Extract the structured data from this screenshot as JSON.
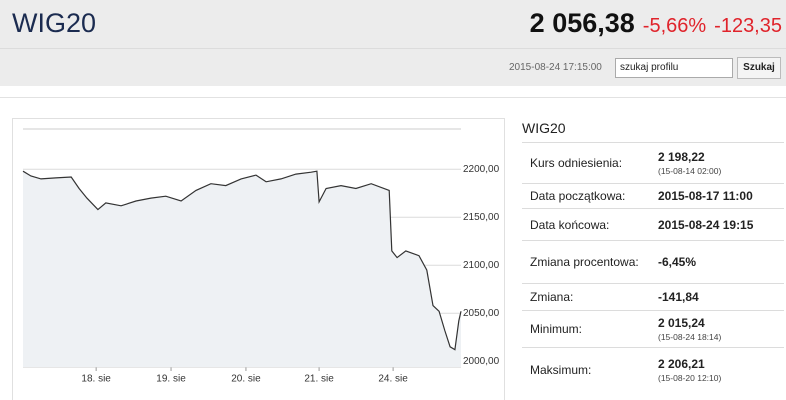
{
  "header": {
    "title": "WIG20",
    "price": "2 056,38",
    "change_percent": "-5,66%",
    "change": "-123,35",
    "timestamp": "2015-08-24 17:15:00",
    "search_placeholder": "szukaj profilu",
    "search_button": "Szukaj"
  },
  "chart_data": {
    "type": "line",
    "x": [
      0,
      1.8,
      4.1,
      7.5,
      11.0,
      12.8,
      14.6,
      17.1,
      18.9,
      22.4,
      25.8,
      29.2,
      32.6,
      36.1,
      39.5,
      42.9,
      46.3,
      49.8,
      53.2,
      55.5,
      58.9,
      62.3,
      65.8,
      67.1,
      67.6,
      69.2,
      72.6,
      76.0,
      79.5,
      83.6,
      84.2,
      85.4,
      87.4,
      90.4,
      92.2,
      93.6,
      95.0,
      96.3,
      97.5,
      98.6,
      99.5,
      100
    ],
    "series": [
      {
        "color": "#333333",
        "values": [
          2198,
          2193,
          2190,
          2191,
          2192,
          2180,
          2170,
          2158,
          2165,
          2162,
          2167,
          2170,
          2172,
          2167,
          2178,
          2185,
          2183,
          2190,
          2194,
          2187,
          2190,
          2195,
          2197,
          2198,
          2166,
          2180,
          2183,
          2180,
          2185,
          2178,
          2115,
          2108,
          2115,
          2110,
          2095,
          2058,
          2052,
          2032,
          2015,
          2012,
          2042,
          2052
        ]
      }
    ],
    "xlim": [
      0,
      100
    ],
    "xticks": [
      {
        "value": 16.7,
        "label": "18. sie"
      },
      {
        "value": 33.8,
        "label": "19. sie"
      },
      {
        "value": 50.9,
        "label": "20. sie"
      },
      {
        "value": 67.6,
        "label": "21. sie"
      },
      {
        "value": 84.5,
        "label": "24. sie"
      }
    ],
    "ylim": [
      1994,
      2242
    ],
    "yticks": [
      {
        "value": 2000,
        "label": "2000,00"
      },
      {
        "value": 2050,
        "label": "2050,00"
      },
      {
        "value": 2100,
        "label": "2100,00"
      },
      {
        "value": 2150,
        "label": "2150,00"
      },
      {
        "value": 2200,
        "label": "2200,00"
      }
    ],
    "grid": true,
    "area_color": "#eef1f4"
  },
  "summary": {
    "title": "WIG20",
    "rows": [
      {
        "label": "Kurs odniesienia:",
        "value": "2 198,22",
        "note": "(15-08-14 02:00)"
      },
      {
        "label": "Data początkowa:",
        "value": "2015-08-17 11:00"
      },
      {
        "label": "Data końcowa:",
        "value": "2015-08-24 19:15"
      },
      {
        "label": "Zmiana procentowa:",
        "value": "-6,45%"
      },
      {
        "label": "Zmiana:",
        "value": "-141,84"
      },
      {
        "label": "Minimum:",
        "value": "2 015,24",
        "note": "(15-08-24 18:14)"
      },
      {
        "label": "Maksimum:",
        "value": "2 206,21",
        "note": "(15-08-20 12:10)"
      }
    ]
  }
}
